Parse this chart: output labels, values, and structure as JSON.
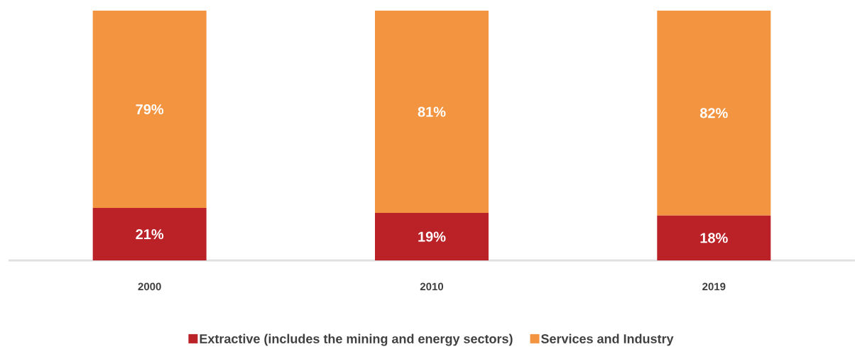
{
  "chart_data": {
    "type": "bar",
    "stacked": true,
    "categories": [
      "2000",
      "2010",
      "2019"
    ],
    "series": [
      {
        "name": "Extractive (includes the mining and energy sectors)",
        "color": "#bb2227",
        "values": [
          21,
          19,
          18
        ],
        "value_labels": [
          "21%",
          "19%",
          "18%"
        ]
      },
      {
        "name": "Services and Industry",
        "color": "#f29440",
        "values": [
          79,
          81,
          82
        ],
        "value_labels": [
          "79%",
          "81%",
          "82%"
        ]
      }
    ],
    "ylim": [
      0,
      100
    ],
    "tick_labels": "x",
    "legend": "bottom"
  }
}
